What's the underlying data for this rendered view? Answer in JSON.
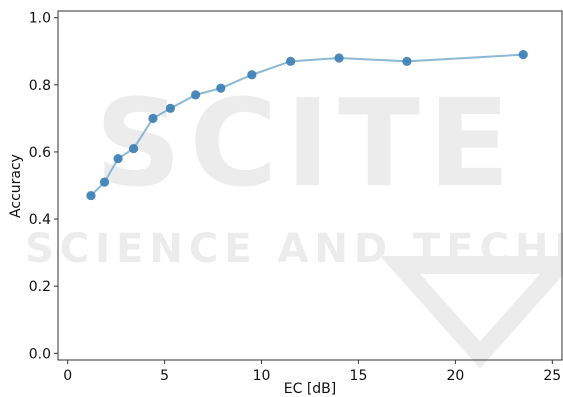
{
  "chart_data": {
    "type": "line",
    "title": "",
    "xlabel": "EC [dB]",
    "ylabel": "Accuracy",
    "xlim": [
      -0.5,
      25.5
    ],
    "ylim": [
      -0.02,
      1.02
    ],
    "xticks": [
      0,
      5,
      10,
      15,
      20,
      25
    ],
    "yticks": [
      0.0,
      0.2,
      0.4,
      0.6,
      0.8,
      1.0
    ],
    "xtick_labels": [
      "0",
      "5",
      "10",
      "15",
      "20",
      "25"
    ],
    "ytick_labels": [
      "0.0",
      "0.2",
      "0.4",
      "0.6",
      "0.8",
      "1.0"
    ],
    "grid": false,
    "series": [
      {
        "x": [
          1.2,
          1.9,
          2.6,
          3.4,
          4.4,
          5.3,
          6.6,
          7.9,
          9.5,
          11.5,
          14.0,
          17.5,
          23.5
        ],
        "y": [
          0.47,
          0.51,
          0.58,
          0.61,
          0.7,
          0.73,
          0.77,
          0.79,
          0.83,
          0.87,
          0.88,
          0.87,
          0.89
        ],
        "line_color": "#8bb8d4",
        "marker_color": "#3d7fb5"
      }
    ]
  },
  "watermark": {
    "line1": "SCITE",
    "line2": "SCIENCE AND TECHN"
  }
}
